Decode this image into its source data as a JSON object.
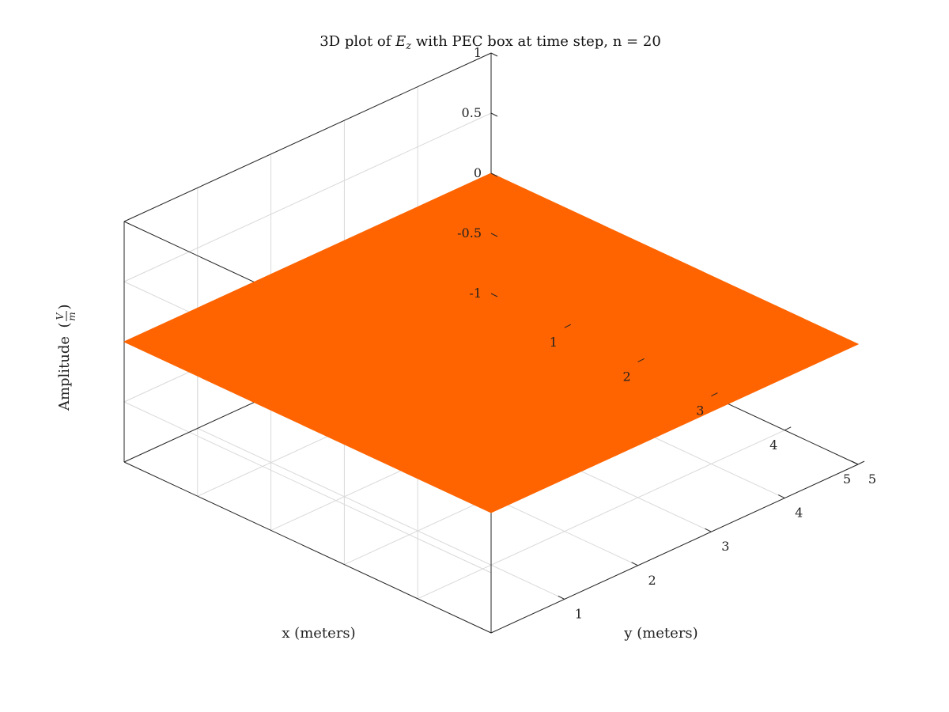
{
  "chart_data": {
    "type": "surface",
    "title": "3D plot of E_z with PEC box at time step, n = 20",
    "title_parts": {
      "prefix": "3D plot of ",
      "symbol": "E",
      "subscript": "z",
      "suffix": " with PEC box at time step, n = 20"
    },
    "xlabel": "x (meters)",
    "ylabel": "y (meters)",
    "zlabel": "Amplitude",
    "zlabel_unit_num": "V",
    "zlabel_unit_den": "m",
    "xlim": [
      0,
      5
    ],
    "ylim": [
      0,
      5
    ],
    "zlim": [
      -1,
      1
    ],
    "x_ticks": [
      1,
      2,
      3,
      4,
      5
    ],
    "y_ticks": [
      1,
      2,
      3,
      4,
      5
    ],
    "z_ticks": [
      -1,
      -0.5,
      0,
      0.5,
      1
    ],
    "z_tick_labels": [
      "-1",
      "-0.5",
      "0",
      "0.5",
      "1"
    ],
    "grid": true,
    "surface_color": "#ff6400",
    "surface": {
      "x": [
        0,
        5
      ],
      "y": [
        0,
        5
      ],
      "z": [
        [
          0,
          0
        ],
        [
          0,
          0
        ]
      ]
    }
  }
}
